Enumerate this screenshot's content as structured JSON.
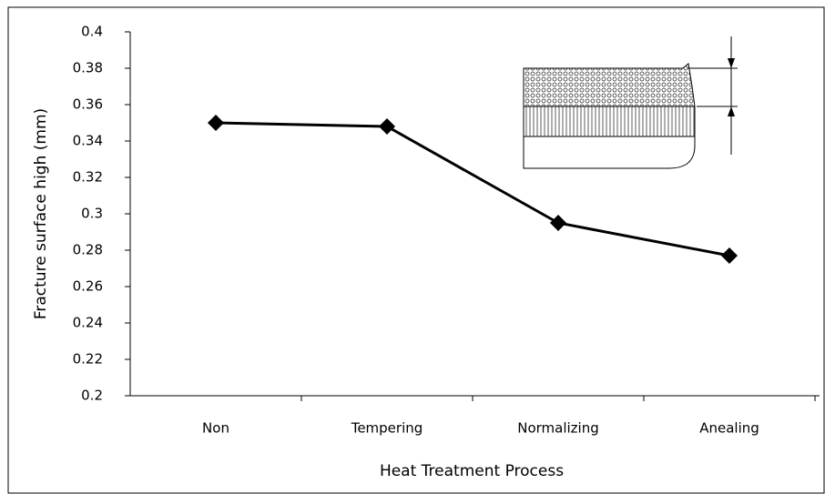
{
  "chart_data": {
    "type": "line",
    "y_label": "Fracture surface high (mm)",
    "x_label": "Heat Treatment Process",
    "categories": [
      "Non",
      "Tempering",
      "Normalizing",
      "Anealing"
    ],
    "values": [
      0.35,
      0.348,
      0.295,
      0.277
    ],
    "color": "#000000",
    "ylim": [
      0.2,
      0.4
    ],
    "yticks": [
      0.2,
      0.22,
      0.24,
      0.26,
      0.28,
      0.3,
      0.32,
      0.34,
      0.36,
      0.38,
      0.4
    ]
  }
}
